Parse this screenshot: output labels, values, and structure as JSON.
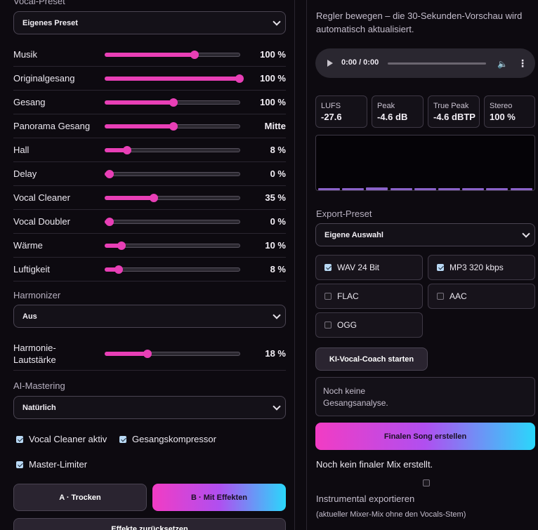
{
  "left": {
    "vocal_preset": {
      "label": "Vocal-Preset",
      "value": "Eigenes Preset"
    },
    "sliders": [
      {
        "name": "musik",
        "label": "Musik",
        "percent": 66,
        "value": "100 %"
      },
      {
        "name": "originalgesang",
        "label": "Originalgesang",
        "percent": 99,
        "value": "100 %"
      },
      {
        "name": "gesang",
        "label": "Gesang",
        "percent": 50,
        "value": "100 %"
      },
      {
        "name": "panorama-gesang",
        "label": "Panorama Gesang",
        "percent": 50,
        "value": "Mitte"
      },
      {
        "name": "hall",
        "label": "Hall",
        "percent": 16,
        "value": "8 %"
      },
      {
        "name": "delay",
        "label": "Delay",
        "percent": 3,
        "value": "0 %"
      },
      {
        "name": "vocal-cleaner",
        "label": "Vocal Cleaner",
        "percent": 36,
        "value": "35 %"
      },
      {
        "name": "vocal-doubler",
        "label": "Vocal Doubler",
        "percent": 3,
        "value": "0 %"
      },
      {
        "name": "waerme",
        "label": "Wärme",
        "percent": 12,
        "value": "10 %"
      },
      {
        "name": "luftigkeit",
        "label": "Luftigkeit",
        "percent": 10,
        "value": "8 %"
      }
    ],
    "harmonizer": {
      "label": "Harmonizer",
      "value": "Aus"
    },
    "harmonie": {
      "label": "Harmonie-Lautstärke",
      "percent": 31,
      "value": "18 %"
    },
    "mastering": {
      "label": "AI-Mastering",
      "value": "Natürlich"
    },
    "checks": {
      "vocal_cleaner": {
        "label": "Vocal Cleaner aktiv",
        "checked": true
      },
      "kompressor": {
        "label": "Gesangskompressor",
        "checked": true
      },
      "limiter": {
        "label": "Master-Limiter",
        "checked": true
      }
    },
    "buttons": {
      "a": "A · Trocken",
      "b": "B · Mit Effekten",
      "reset": "Effekte zurücksetzen"
    }
  },
  "right": {
    "hint": "Regler bewegen – die 30-Sekunden-Vorschau wird automatisch aktualisiert.",
    "audio": {
      "time": "0:00 / 0:00"
    },
    "meters": [
      {
        "name": "lufs",
        "title": "LUFS",
        "value": "-27.6"
      },
      {
        "name": "peak",
        "title": "Peak",
        "value": "-4.6 dB"
      },
      {
        "name": "true-peak",
        "title": "True Peak",
        "value": "-4.6 dBTP"
      },
      {
        "name": "stereo",
        "title": "Stereo",
        "value": "100 %"
      }
    ],
    "export_preset": {
      "label": "Export-Preset",
      "value": "Eigene Auswahl"
    },
    "formats": [
      {
        "name": "wav",
        "label": "WAV 24 Bit",
        "checked": true
      },
      {
        "name": "mp3",
        "label": "MP3 320 kbps",
        "checked": true
      },
      {
        "name": "flac",
        "label": "FLAC",
        "checked": false
      },
      {
        "name": "aac",
        "label": "AAC",
        "checked": false
      },
      {
        "name": "ogg",
        "label": "OGG",
        "checked": false
      }
    ],
    "coach_button": "KI-Vocal-Coach starten",
    "coach_text": "Noch keine Gesangsanalyse.",
    "final_button": "Finalen Song erstellen",
    "final_status": "Noch kein finaler Mix erstellt.",
    "instrumental": {
      "label": "Instrumental exportieren",
      "note": "(aktueller Mixer-Mix ohne den Vocals-Stem)",
      "checked": false
    }
  },
  "colors": {
    "accent_pink": "#e83fb6",
    "accent_cyan": "#2ad7fb",
    "background": "#0d0a10"
  }
}
